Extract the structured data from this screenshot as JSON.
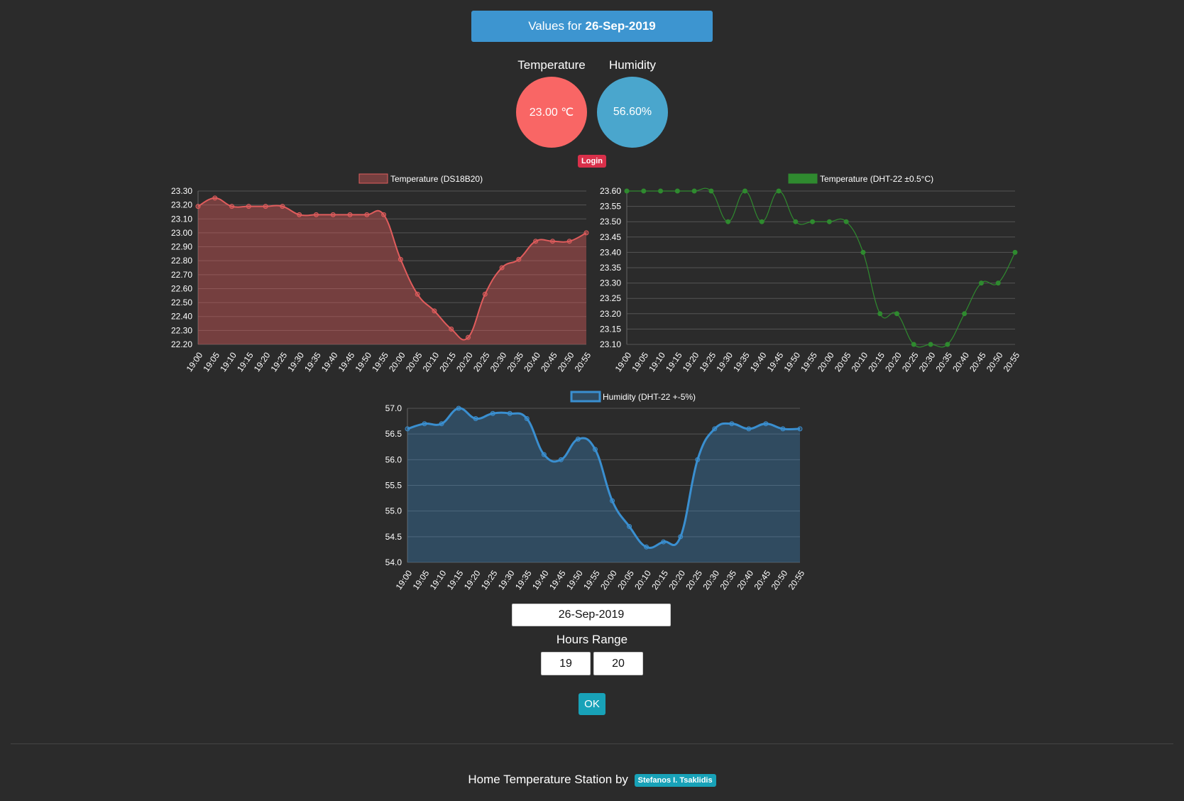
{
  "banner": {
    "prefix": "Values for",
    "date": "26-Sep-2019"
  },
  "gauges": {
    "temperature": {
      "label": "Temperature",
      "value": "23.00 ℃",
      "color": "#f96665"
    },
    "humidity": {
      "label": "Humidity",
      "value": "56.60%",
      "color": "#4aa6cd"
    }
  },
  "login_label": "Login",
  "form": {
    "date_value": "26-Sep-2019",
    "hours_range_label": "Hours Range",
    "hour_from": "19",
    "hour_to": "20",
    "ok_label": "OK"
  },
  "footer": {
    "text": "Home Temperature Station by",
    "author": "Stefanos I. Tsaklidis"
  },
  "chart_data": [
    {
      "type": "area",
      "legend": "Temperature (DS18B20)",
      "color": "#e05c5c",
      "fill": "rgba(220,90,90,0.42)",
      "ylim": [
        22.2,
        23.3
      ],
      "ytick_step": 0.1,
      "ytick_decimals": 2,
      "x": [
        "19:00",
        "19:05",
        "19:10",
        "19:15",
        "19:20",
        "19:25",
        "19:30",
        "19:35",
        "19:40",
        "19:45",
        "19:50",
        "19:55",
        "20:00",
        "20:05",
        "20:10",
        "20:15",
        "20:20",
        "20:25",
        "20:30",
        "20:35",
        "20:40",
        "20:45",
        "20:50",
        "20:55"
      ],
      "values": [
        23.19,
        23.25,
        23.19,
        23.19,
        23.19,
        23.19,
        23.13,
        23.13,
        23.13,
        23.13,
        23.13,
        23.13,
        22.81,
        22.56,
        22.44,
        22.31,
        22.25,
        22.56,
        22.75,
        22.81,
        22.94,
        22.94,
        22.94,
        23.0
      ]
    },
    {
      "type": "line",
      "legend": "Temperature (DHT-22 ±0.5°C)",
      "color": "#2f8a2f",
      "fill": "none",
      "ylim": [
        23.1,
        23.6
      ],
      "ytick_step": 0.05,
      "ytick_decimals": 2,
      "x": [
        "19:00",
        "19:05",
        "19:10",
        "19:15",
        "19:20",
        "19:25",
        "19:30",
        "19:35",
        "19:40",
        "19:45",
        "19:50",
        "19:55",
        "20:00",
        "20:05",
        "20:10",
        "20:15",
        "20:20",
        "20:25",
        "20:30",
        "20:35",
        "20:40",
        "20:45",
        "20:50",
        "20:55"
      ],
      "values": [
        23.6,
        23.6,
        23.6,
        23.6,
        23.6,
        23.6,
        23.5,
        23.6,
        23.5,
        23.6,
        23.5,
        23.5,
        23.5,
        23.5,
        23.4,
        23.2,
        23.2,
        23.1,
        23.1,
        23.1,
        23.2,
        23.3,
        23.3,
        23.4
      ]
    },
    {
      "type": "area",
      "legend": "Humidity (DHT-22 +-5%)",
      "color": "#3a8fd0",
      "fill": "rgba(58,143,208,0.32)",
      "ylim": [
        54.0,
        57.0
      ],
      "ytick_step": 0.5,
      "ytick_decimals": 1,
      "x": [
        "19:00",
        "19:05",
        "19:10",
        "19:15",
        "19:20",
        "19:25",
        "19:30",
        "19:35",
        "19:40",
        "19:45",
        "19:50",
        "19:55",
        "20:00",
        "20:05",
        "20:10",
        "20:15",
        "20:20",
        "20:25",
        "20:30",
        "20:35",
        "20:40",
        "20:45",
        "20:50",
        "20:55"
      ],
      "values": [
        56.6,
        56.7,
        56.7,
        57.0,
        56.8,
        56.9,
        56.9,
        56.8,
        56.1,
        56.0,
        56.4,
        56.2,
        55.2,
        54.7,
        54.3,
        54.4,
        54.5,
        56.0,
        56.6,
        56.7,
        56.6,
        56.7,
        56.6,
        56.6
      ]
    }
  ]
}
